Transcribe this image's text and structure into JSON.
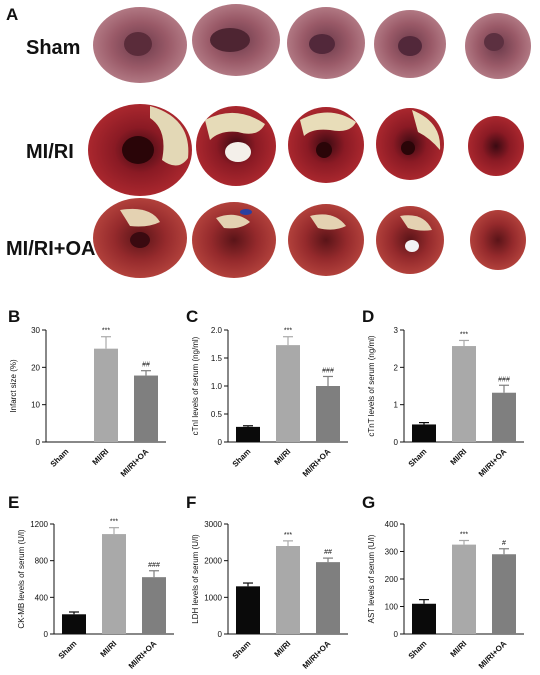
{
  "panel_a": {
    "letter": "A",
    "rows": [
      {
        "label": "Sham",
        "slices": 5
      },
      {
        "label": "MI/RI",
        "slices": 5
      },
      {
        "label": "MI/RI+OA",
        "slices": 5
      }
    ]
  },
  "colors": {
    "Sham": "#0a0a0a",
    "MI/RI": "#a9a9a9",
    "MI/RI+OA": "#7f7f7f"
  },
  "chart_data": [
    {
      "letter": "B",
      "type": "bar",
      "categories": [
        "Sham",
        "MI/RI",
        "MI/RI+OA"
      ],
      "values": [
        0,
        25,
        17.8
      ],
      "errors": [
        0,
        3.2,
        1.3
      ],
      "sig": [
        "",
        "***",
        "##"
      ],
      "ylabel": "Infarct size (%)",
      "ylim": [
        0,
        30
      ],
      "yticks": [
        0,
        10,
        20,
        30
      ],
      "ytick_labels": [
        "0",
        "10",
        "20",
        "30"
      ]
    },
    {
      "letter": "C",
      "type": "bar",
      "categories": [
        "Sham",
        "MI/RI",
        "MI/RI+OA"
      ],
      "values": [
        0.27,
        1.73,
        1.0
      ],
      "errors": [
        0.02,
        0.15,
        0.17
      ],
      "sig": [
        "",
        "***",
        "###"
      ],
      "ylabel": "cTnI levels of serum (ng/ml)",
      "ylim": [
        0,
        2.0
      ],
      "yticks": [
        0,
        0.5,
        1.0,
        1.5,
        2.0
      ],
      "ytick_labels": [
        "0",
        "0.5",
        "1.0",
        "1.5",
        "2.0"
      ]
    },
    {
      "letter": "D",
      "type": "bar",
      "categories": [
        "Sham",
        "MI/RI",
        "MI/RI+OA"
      ],
      "values": [
        0.47,
        2.57,
        1.32
      ],
      "errors": [
        0.05,
        0.15,
        0.2
      ],
      "sig": [
        "",
        "***",
        "###"
      ],
      "ylabel": "cTnT levels of serum (ng/ml)",
      "ylim": [
        0,
        3
      ],
      "yticks": [
        0,
        1,
        2,
        3
      ],
      "ytick_labels": [
        "0",
        "1",
        "2",
        "3"
      ]
    },
    {
      "letter": "E",
      "type": "bar",
      "categories": [
        "Sham",
        "MI/RI",
        "MI/RI+OA"
      ],
      "values": [
        215,
        1090,
        620
      ],
      "errors": [
        25,
        70,
        70
      ],
      "sig": [
        "",
        "***",
        "###"
      ],
      "ylabel": "CK-MB levels of serum (U/l)",
      "ylim": [
        0,
        1200
      ],
      "yticks": [
        0,
        400,
        800,
        1200
      ],
      "ytick_labels": [
        "0",
        "400",
        "800",
        "1200"
      ]
    },
    {
      "letter": "F",
      "type": "bar",
      "categories": [
        "Sham",
        "MI/RI",
        "MI/RI+OA"
      ],
      "values": [
        1300,
        2400,
        1960
      ],
      "errors": [
        90,
        140,
        110
      ],
      "sig": [
        "",
        "***",
        "##"
      ],
      "ylabel": "LDH levels of serum (U/l)",
      "ylim": [
        0,
        3000
      ],
      "yticks": [
        0,
        1000,
        2000,
        3000
      ],
      "ytick_labels": [
        "0",
        "1000",
        "2000",
        "3000"
      ]
    },
    {
      "letter": "G",
      "type": "bar",
      "categories": [
        "Sham",
        "MI/RI",
        "MI/RI+OA"
      ],
      "values": [
        110,
        325,
        290
      ],
      "errors": [
        15,
        15,
        20
      ],
      "sig": [
        "",
        "***",
        "#"
      ],
      "ylabel": "AST levels of serum (U/l)",
      "ylim": [
        0,
        400
      ],
      "yticks": [
        0,
        100,
        200,
        300,
        400
      ],
      "ytick_labels": [
        "0",
        "100",
        "200",
        "300",
        "400"
      ]
    }
  ]
}
